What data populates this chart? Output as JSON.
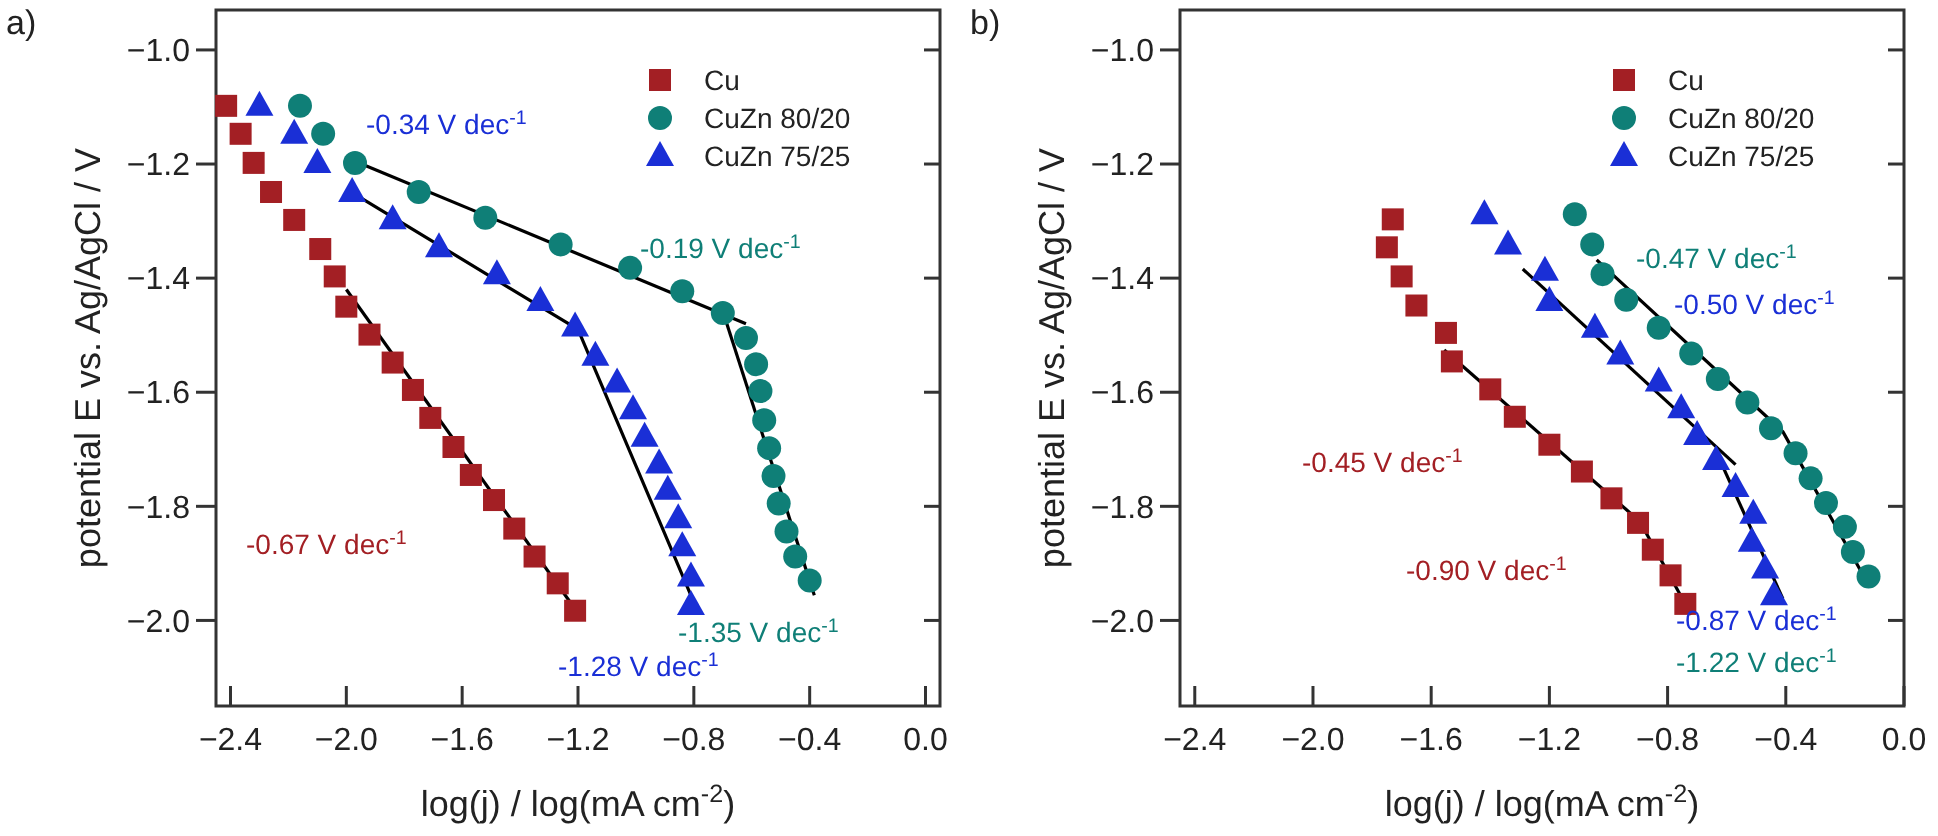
{
  "chart_data": [
    {
      "type": "scatter",
      "title": "a)",
      "xlabel": "log(j) / log(mA cm$^{-2}$)",
      "ylabel": "potential E vs. Ag/AgCl / V",
      "xlim": [
        -2.45,
        0.05
      ],
      "ylim": [
        -2.15,
        -0.93
      ],
      "xticks": [
        {
          "value": -2.4,
          "label": "−2.4"
        },
        {
          "value": -2.0,
          "label": "−2.0"
        },
        {
          "value": -1.6,
          "label": "−1.6"
        },
        {
          "value": -1.2,
          "label": "−1.2"
        },
        {
          "value": -0.8,
          "label": "−0.8"
        },
        {
          "value": -0.4,
          "label": "−0.4"
        },
        {
          "value": 0,
          "label": "0.0"
        }
      ],
      "yticks": [
        {
          "value": -2.0,
          "label": "−2.0"
        },
        {
          "value": -1.8,
          "label": "−1.8"
        },
        {
          "value": -1.6,
          "label": "−1.6"
        },
        {
          "value": -1.4,
          "label": "−1.4"
        },
        {
          "value": -1.2,
          "label": "−1.2"
        },
        {
          "value": -1.0,
          "label": "−1.0"
        }
      ],
      "legend": "top right",
      "grid": false,
      "series": [
        {
          "name": "Cu",
          "color": "#a31f24",
          "marker": "square",
          "x": [
            -2.415,
            -2.365,
            -2.32,
            -2.26,
            -2.18,
            -2.09,
            -2.04,
            -2.0,
            -1.92,
            -1.84,
            -1.77,
            -1.71,
            -1.63,
            -1.57,
            -1.49,
            -1.42,
            -1.35,
            -1.27,
            -1.21
          ],
          "values": [
            -1.098,
            -1.147,
            -1.198,
            -1.249,
            -1.298,
            -1.349,
            -1.397,
            -1.45,
            -1.499,
            -1.548,
            -1.596,
            -1.645,
            -1.696,
            -1.745,
            -1.789,
            -1.839,
            -1.888,
            -1.935,
            -1.983
          ]
        },
        {
          "name": "CuZn 80/20",
          "color": "#0f7f77",
          "marker": "circle",
          "x": [
            -2.16,
            -2.08,
            -1.97,
            -1.75,
            -1.52,
            -1.26,
            -1.02,
            -0.84,
            -0.7,
            -0.62,
            -0.585,
            -0.57,
            -0.557,
            -0.54,
            -0.525,
            -0.507,
            -0.48,
            -0.45,
            -0.4
          ],
          "values": [
            -1.098,
            -1.147,
            -1.198,
            -1.249,
            -1.294,
            -1.341,
            -1.382,
            -1.423,
            -1.461,
            -1.505,
            -1.551,
            -1.598,
            -1.649,
            -1.698,
            -1.747,
            -1.795,
            -1.844,
            -1.888,
            -1.93
          ]
        },
        {
          "name": "CuZn 75/25",
          "color": "#1a2fd6",
          "marker": "triangle",
          "x": [
            -2.3,
            -2.18,
            -2.1,
            -1.98,
            -1.84,
            -1.68,
            -1.48,
            -1.33,
            -1.21,
            -1.14,
            -1.065,
            -1.01,
            -0.97,
            -0.92,
            -0.89,
            -0.854,
            -0.84,
            -0.81,
            -0.81
          ],
          "values": [
            -1.098,
            -1.147,
            -1.198,
            -1.249,
            -1.297,
            -1.346,
            -1.393,
            -1.44,
            -1.485,
            -1.536,
            -1.583,
            -1.63,
            -1.678,
            -1.725,
            -1.771,
            -1.821,
            -1.87,
            -1.923,
            -1.973
          ]
        },
        {
          "type": "line",
          "color": "#000000",
          "marker": "none",
          "x": [
            -2.0,
            -1.21
          ],
          "values": [
            -1.42,
            -1.98
          ]
        },
        {
          "type": "line",
          "color": "#000000",
          "marker": "none",
          "x": [
            -1.98,
            -1.2,
            -0.79
          ],
          "values": [
            -1.25,
            -1.49,
            -1.98
          ]
        },
        {
          "type": "line",
          "color": "#000000",
          "marker": "none",
          "x": [
            -1.97,
            -0.62
          ],
          "values": [
            -1.195,
            -1.48
          ]
        },
        {
          "type": "line",
          "color": "#000000",
          "marker": "none",
          "x": [
            -0.7,
            -0.384
          ],
          "values": [
            -1.458,
            -1.956
          ]
        }
      ],
      "annotations": [
        "-0.34 V dec$^{-1}$",
        "-0.19 V dec$^{-1}$",
        "-0.67 V dec$^{-1}$",
        "-1.35 V dec$^{-1}$",
        "-1.28 V dec$^{-1}$"
      ]
    },
    {
      "type": "scatter",
      "title": "b)",
      "xlabel": "log(j) / log(mA cm$^{-2}$)",
      "ylabel": "potential E vs. Ag/AgCl / V",
      "xlim": [
        -2.45,
        0.0
      ],
      "ylim": [
        -2.15,
        -0.93
      ],
      "xticks": [
        {
          "value": -2.4,
          "label": "−2.4"
        },
        {
          "value": -2.0,
          "label": "−2.0"
        },
        {
          "value": -1.6,
          "label": "−1.6"
        },
        {
          "value": -1.2,
          "label": "−1.2"
        },
        {
          "value": -0.8,
          "label": "−0.8"
        },
        {
          "value": -0.4,
          "label": "−0.4"
        },
        {
          "value": 0,
          "label": "0.0"
        }
      ],
      "yticks": [
        {
          "value": -2.0,
          "label": "−2.0"
        },
        {
          "value": -1.8,
          "label": "−1.8"
        },
        {
          "value": -1.6,
          "label": "−1.6"
        },
        {
          "value": -1.4,
          "label": "−1.4"
        },
        {
          "value": -1.2,
          "label": "−1.2"
        },
        {
          "value": -1.0,
          "label": "−1.0"
        }
      ],
      "legend": "top right",
      "grid": false,
      "series": [
        {
          "name": "Cu",
          "color": "#a31f24",
          "marker": "square",
          "x": [
            -1.73,
            -1.75,
            -1.7,
            -1.65,
            -1.55,
            -1.53,
            -1.4,
            -1.317,
            -1.2,
            -1.09,
            -0.99,
            -0.9,
            -0.85,
            -0.79,
            -0.74
          ],
          "values": [
            -1.297,
            -1.346,
            -1.397,
            -1.448,
            -1.496,
            -1.546,
            -1.595,
            -1.643,
            -1.692,
            -1.739,
            -1.786,
            -1.829,
            -1.876,
            -1.921,
            -1.971
          ]
        },
        {
          "name": "CuZn 80/20",
          "color": "#0f7f77",
          "marker": "circle",
          "x": [
            -1.114,
            -1.055,
            -1.02,
            -0.94,
            -0.83,
            -0.72,
            -0.63,
            -0.53,
            -0.45,
            -0.367,
            -0.316,
            -0.264,
            -0.2,
            -0.173,
            -0.12
          ],
          "values": [
            -1.288,
            -1.341,
            -1.393,
            -1.438,
            -1.487,
            -1.532,
            -1.577,
            -1.618,
            -1.663,
            -1.707,
            -1.751,
            -1.794,
            -1.836,
            -1.88,
            -1.923
          ]
        },
        {
          "name": "CuZn 75/25",
          "color": "#1a2fd6",
          "marker": "triangle",
          "x": [
            -1.42,
            -1.34,
            -1.215,
            -1.2,
            -1.046,
            -0.96,
            -0.83,
            -0.754,
            -0.7,
            -0.636,
            -0.57,
            -0.51,
            -0.515,
            -0.47,
            -0.44
          ],
          "values": [
            -1.288,
            -1.341,
            -1.387,
            -1.44,
            -1.487,
            -1.534,
            -1.581,
            -1.628,
            -1.675,
            -1.719,
            -1.766,
            -1.813,
            -1.862,
            -1.909,
            -1.956
          ]
        },
        {
          "type": "line",
          "color": "#000000",
          "marker": "none",
          "x": [
            -1.556,
            -0.873
          ],
          "values": [
            -1.526,
            -1.836
          ]
        },
        {
          "type": "line",
          "color": "#000000",
          "marker": "none",
          "x": [
            -0.9,
            -0.72
          ],
          "values": [
            -1.821,
            -1.99
          ]
        },
        {
          "type": "line",
          "color": "#000000",
          "marker": "none",
          "x": [
            -1.29,
            -0.57
          ],
          "values": [
            -1.384,
            -1.727
          ]
        },
        {
          "type": "line",
          "color": "#000000",
          "marker": "none",
          "x": [
            -0.636,
            -0.41
          ],
          "values": [
            -1.704,
            -1.962
          ]
        },
        {
          "type": "line",
          "color": "#000000",
          "marker": "none",
          "x": [
            -1.04,
            -0.41,
            -0.128
          ],
          "values": [
            -1.368,
            -1.669,
            -1.93
          ]
        }
      ],
      "annotations": [
        "-0.47 V dec$^{-1}$",
        "-0.50 V dec$^{-1}$",
        "-0.45 V dec$^{-1}$",
        "-0.90 V dec$^{-1}$",
        "-0.87 V dec$^{-1}$",
        "-1.22 V dec$^{-1}$"
      ]
    }
  ]
}
